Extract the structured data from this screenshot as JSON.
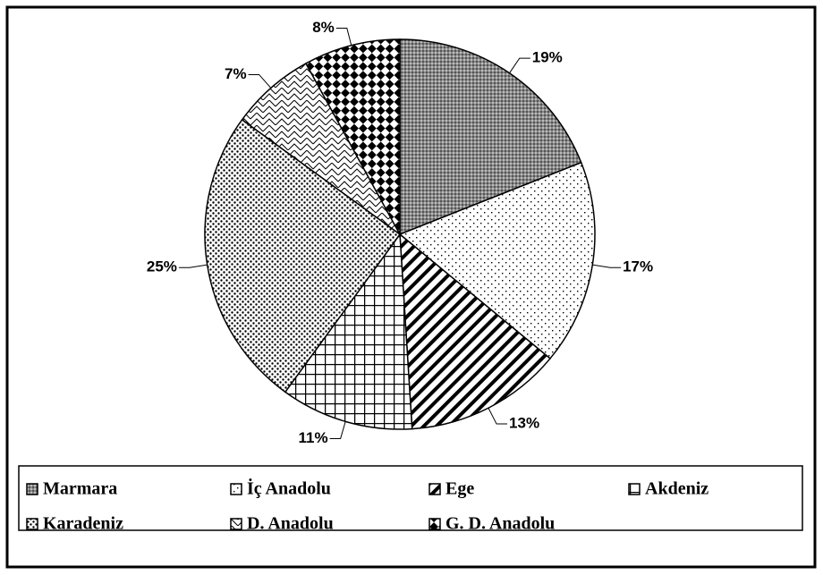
{
  "chart_data": {
    "type": "pie",
    "categories": [
      "Marmara",
      "İç Anadolu",
      "Ege",
      "Akdeniz",
      "Karadeniz",
      "D. Anadolu",
      "G. D. Anadolu"
    ],
    "values": [
      19,
      17,
      13,
      11,
      25,
      7,
      8
    ],
    "value_labels": [
      "19%",
      "17%",
      "13%",
      "11%",
      "25%",
      "7%",
      "8%"
    ],
    "legend": "bottom"
  }
}
